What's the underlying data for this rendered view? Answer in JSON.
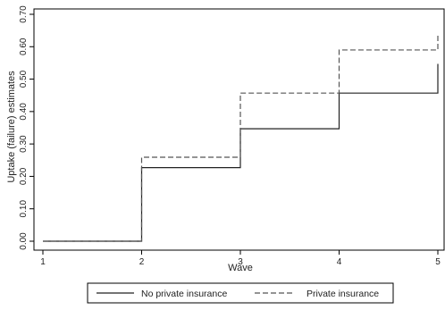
{
  "chart_data": {
    "type": "line",
    "step": true,
    "xlabel": "Wave",
    "ylabel": "Uptake (failure) estimates",
    "xlim": [
      1,
      5
    ],
    "ylim": [
      0,
      0.7
    ],
    "x_ticks": [
      "1",
      "2",
      "3",
      "4",
      "5"
    ],
    "y_ticks": [
      "0.00",
      "0.10",
      "0.20",
      "0.30",
      "0.40",
      "0.50",
      "0.60",
      "0.70"
    ],
    "grid": false,
    "legend_position": "bottom",
    "series": [
      {
        "name": "No private insurance",
        "line_style": "solid",
        "color": "#222222",
        "x": [
          1,
          2,
          3,
          4,
          5,
          5
        ],
        "y": [
          0.0,
          0.227,
          0.347,
          0.457,
          0.457,
          0.547
        ]
      },
      {
        "name": "Private insurance",
        "line_style": "dashed",
        "color": "#555555",
        "x": [
          1,
          2,
          3,
          4,
          5,
          5
        ],
        "y": [
          0.0,
          0.259,
          0.457,
          0.59,
          0.59,
          0.642
        ]
      }
    ]
  }
}
